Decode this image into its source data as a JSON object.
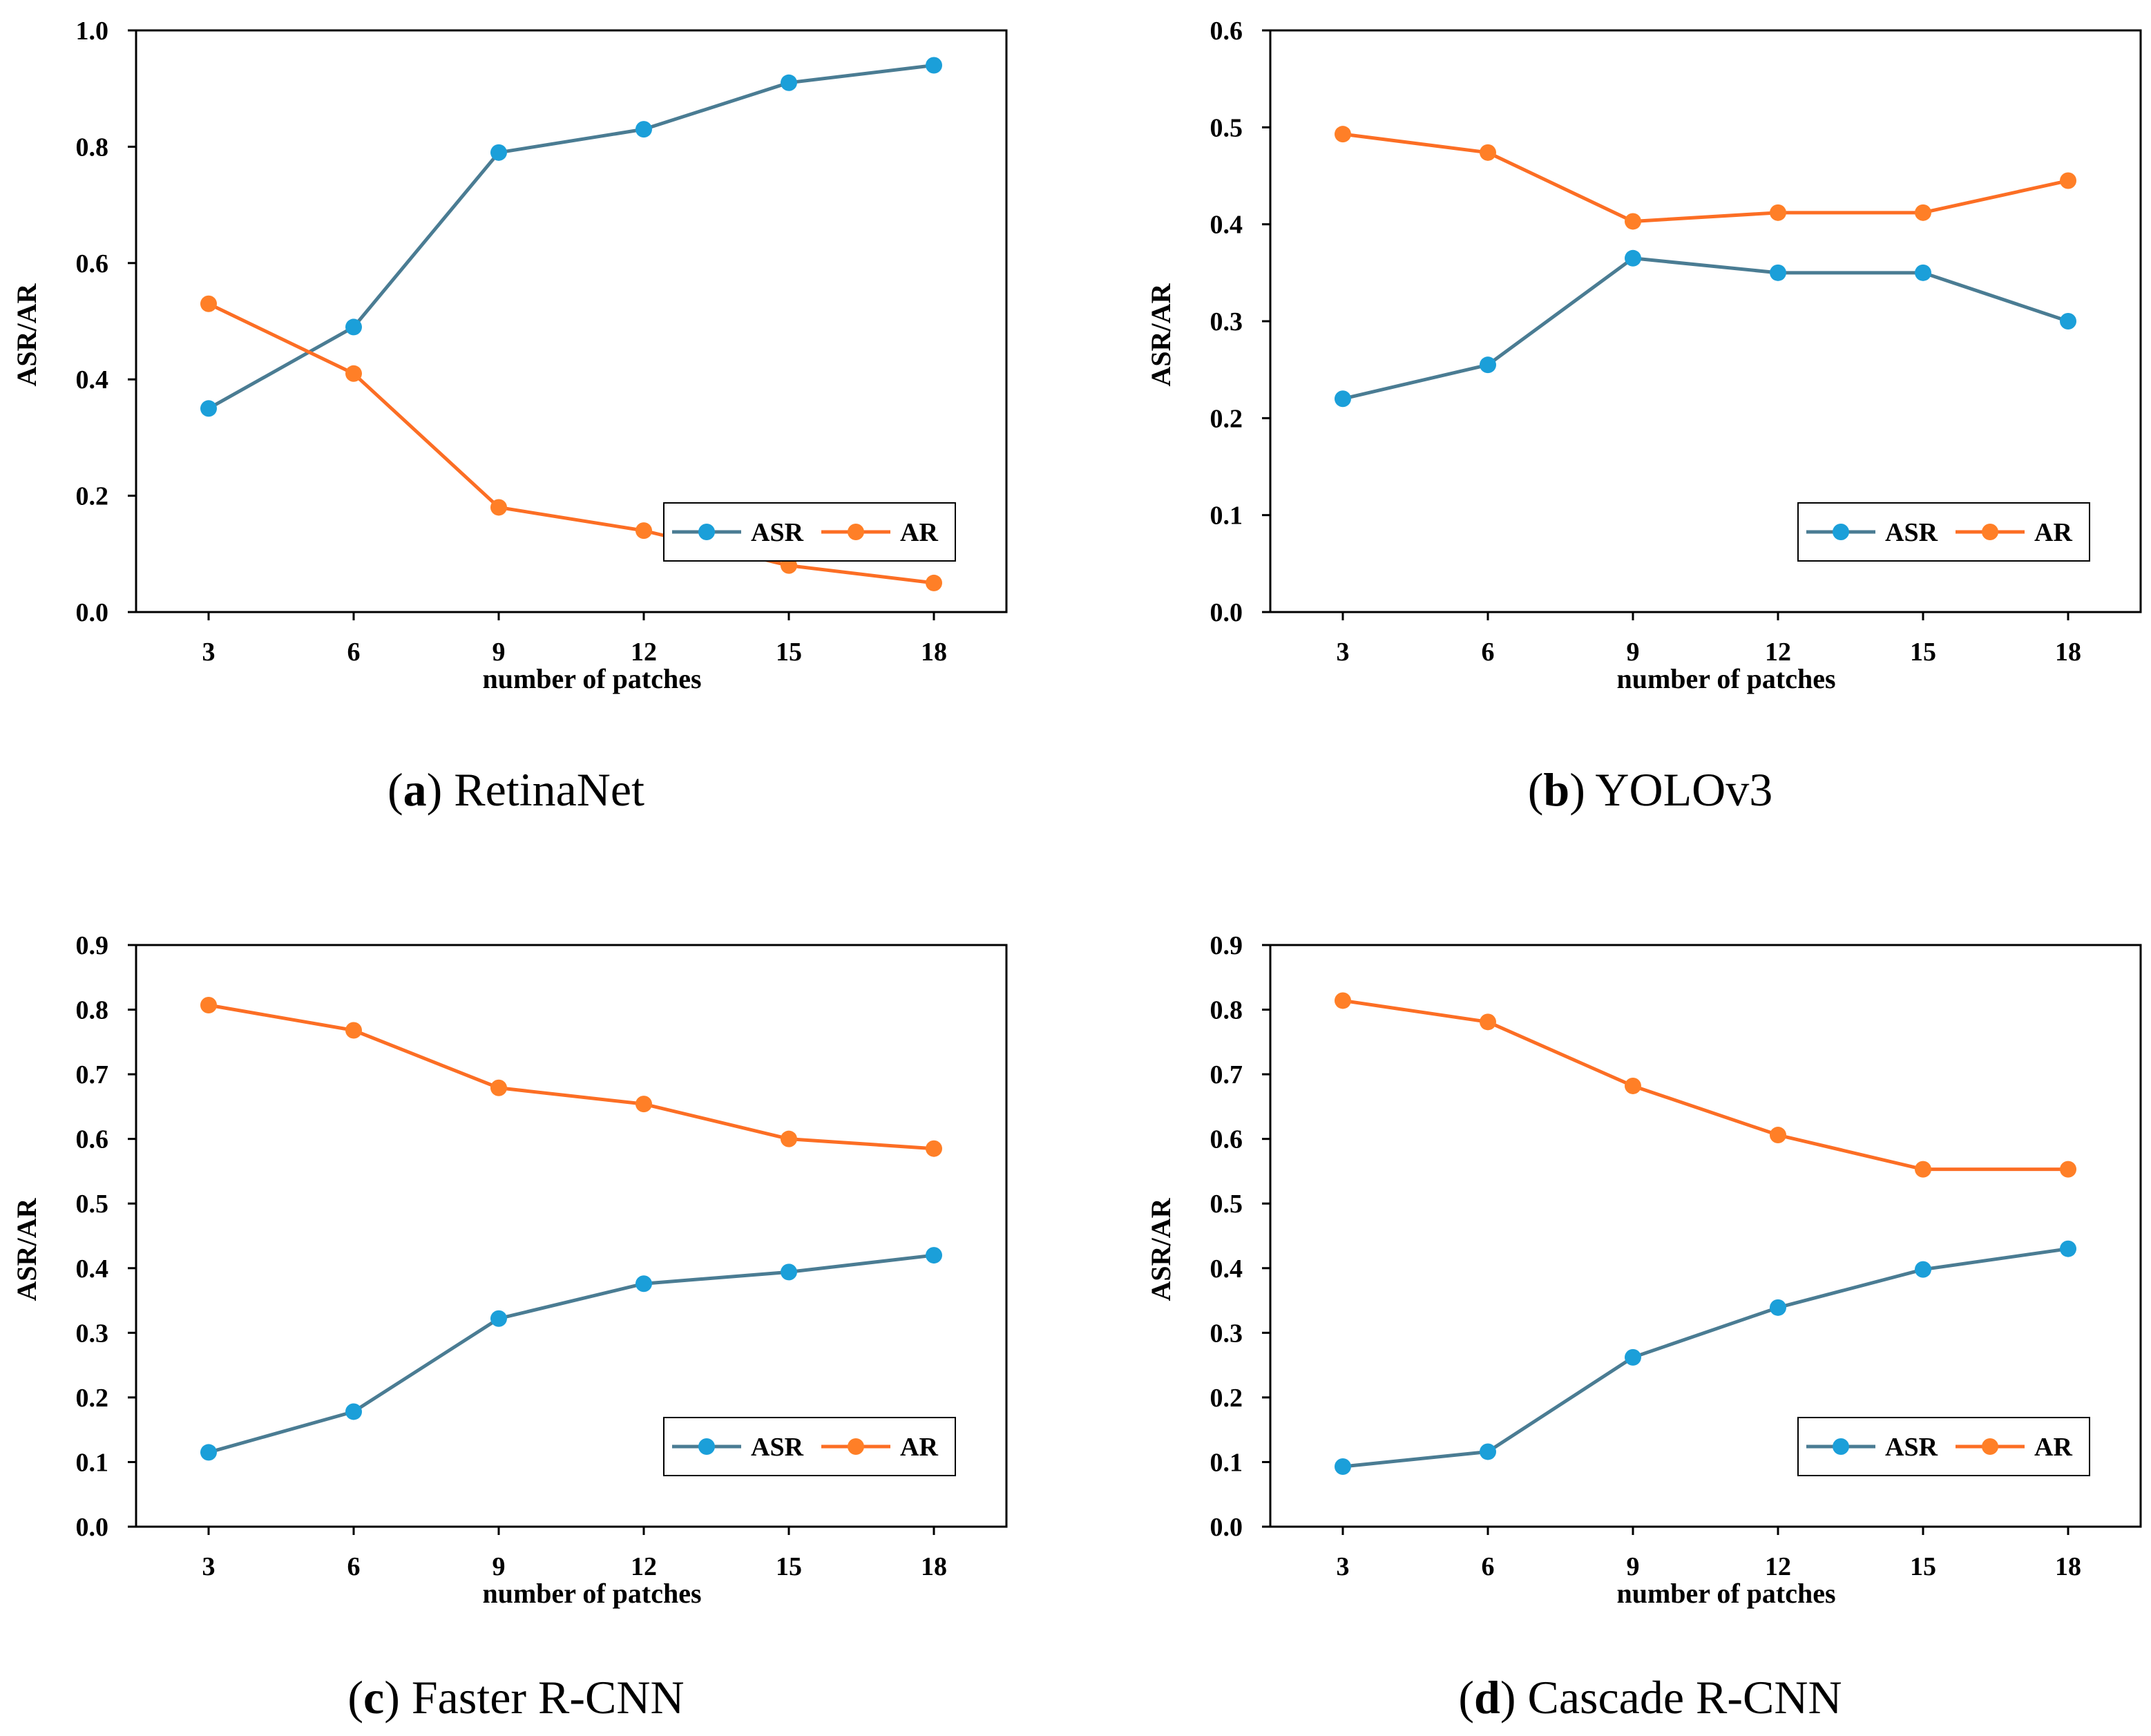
{
  "colors": {
    "ASR": "#1b9fd9",
    "ASR_line": "#4a7c93",
    "AR": "#ff7f27",
    "AR_line": "#fc6e24"
  },
  "chart_data": [
    {
      "type": "line",
      "caption_letter": "(a)",
      "caption_name": "RetinaNet",
      "xlabel": "number of patches",
      "ylabel": "ASR/AR",
      "categories": [
        "3",
        "6",
        "9",
        "12",
        "15",
        "18"
      ],
      "ylim": [
        0,
        1.0
      ],
      "yticks": [
        "0.0",
        "0.2",
        "0.4",
        "0.6",
        "0.8",
        "1.0"
      ],
      "legend": "bottom-right",
      "series": [
        {
          "name": "ASR",
          "values": [
            0.35,
            0.49,
            0.79,
            0.83,
            0.91,
            0.94
          ]
        },
        {
          "name": "AR",
          "values": [
            0.53,
            0.41,
            0.18,
            0.14,
            0.08,
            0.05
          ]
        }
      ]
    },
    {
      "type": "line",
      "caption_letter": "(b)",
      "caption_name": "YOLOv3",
      "xlabel": "number of patches",
      "ylabel": "ASR/AR",
      "categories": [
        "3",
        "6",
        "9",
        "12",
        "15",
        "18"
      ],
      "ylim": [
        0,
        0.6
      ],
      "yticks": [
        "0.0",
        "0.1",
        "0.2",
        "0.3",
        "0.4",
        "0.5",
        "0.6"
      ],
      "legend": "bottom-right",
      "series": [
        {
          "name": "ASR",
          "values": [
            0.22,
            0.255,
            0.365,
            0.35,
            0.35,
            0.3
          ]
        },
        {
          "name": "AR",
          "values": [
            0.493,
            0.474,
            0.403,
            0.412,
            0.412,
            0.445
          ]
        }
      ]
    },
    {
      "type": "line",
      "caption_letter": "(c)",
      "caption_name": "Faster R-CNN",
      "xlabel": "number of patches",
      "ylabel": "ASR/AR",
      "categories": [
        "3",
        "6",
        "9",
        "12",
        "15",
        "18"
      ],
      "ylim": [
        0,
        0.9
      ],
      "yticks": [
        "0.0",
        "0.1",
        "0.2",
        "0.3",
        "0.4",
        "0.5",
        "0.6",
        "0.7",
        "0.8",
        "0.9"
      ],
      "legend": "bottom-right",
      "series": [
        {
          "name": "ASR",
          "values": [
            0.115,
            0.178,
            0.322,
            0.376,
            0.394,
            0.42
          ]
        },
        {
          "name": "AR",
          "values": [
            0.807,
            0.768,
            0.679,
            0.654,
            0.6,
            0.585
          ]
        }
      ]
    },
    {
      "type": "line",
      "caption_letter": "(d)",
      "caption_name": "Cascade R-CNN",
      "xlabel": "number of patches",
      "ylabel": "ASR/AR",
      "categories": [
        "3",
        "6",
        "9",
        "12",
        "15",
        "18"
      ],
      "ylim": [
        0,
        0.9
      ],
      "yticks": [
        "0.0",
        "0.1",
        "0.2",
        "0.3",
        "0.4",
        "0.5",
        "0.6",
        "0.7",
        "0.8",
        "0.9"
      ],
      "legend": "bottom-right",
      "series": [
        {
          "name": "ASR",
          "values": [
            0.093,
            0.116,
            0.262,
            0.339,
            0.398,
            0.43
          ]
        },
        {
          "name": "AR",
          "values": [
            0.814,
            0.781,
            0.682,
            0.606,
            0.553,
            0.553
          ]
        }
      ]
    }
  ]
}
